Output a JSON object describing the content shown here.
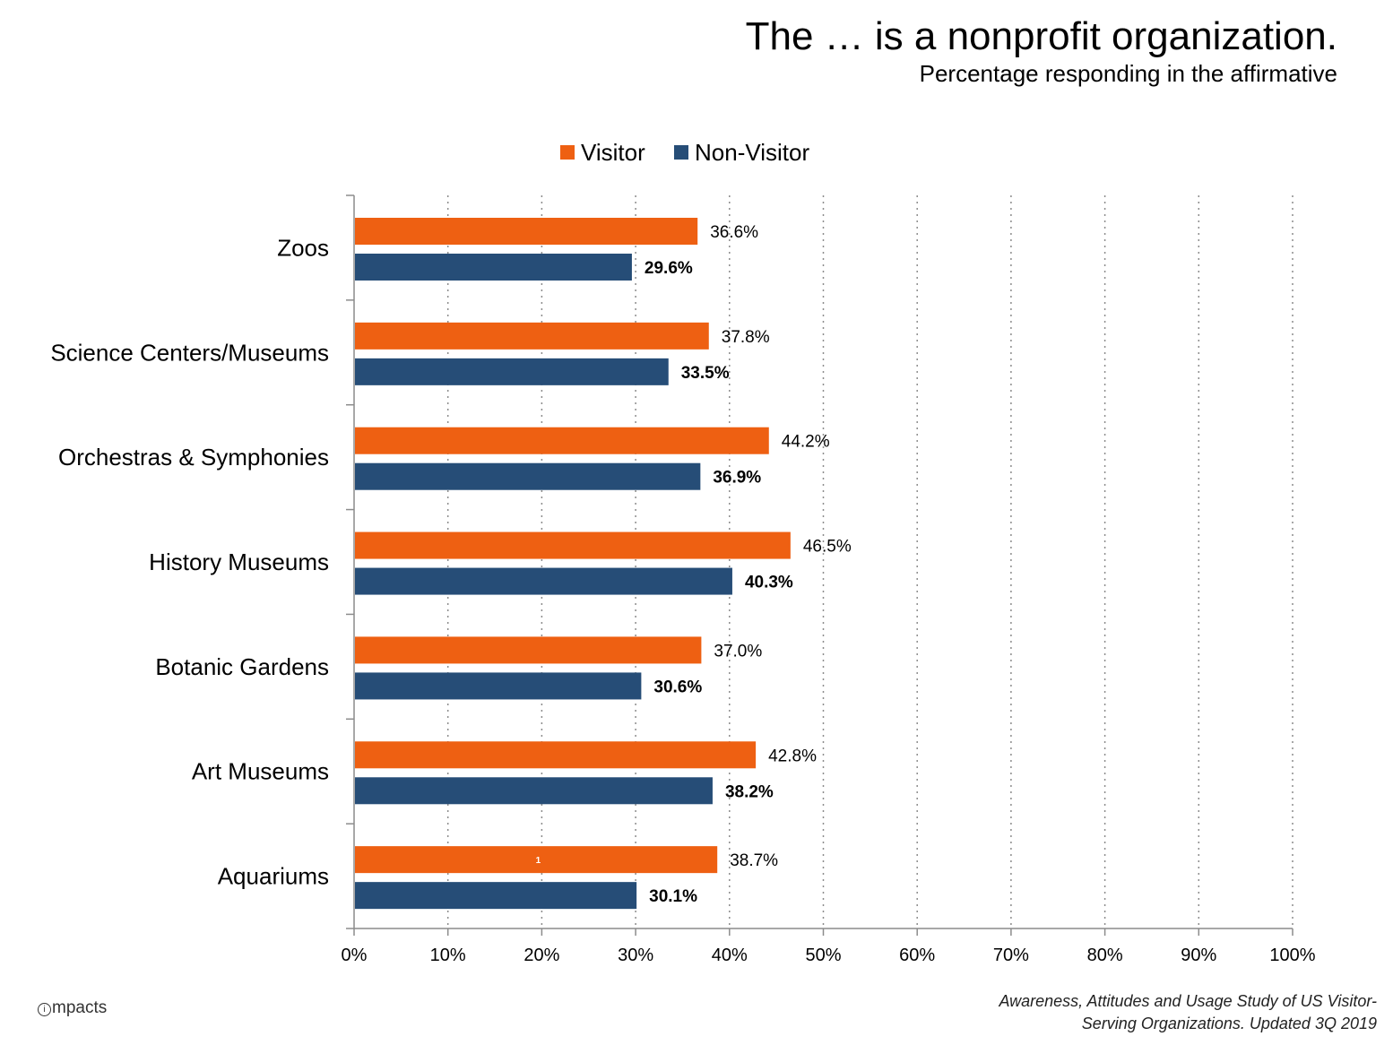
{
  "header": {
    "title": "The … is a nonprofit organization.",
    "subtitle": "Percentage responding in the affirmative"
  },
  "chart_data": {
    "type": "bar",
    "orientation": "horizontal",
    "title": "The … is a nonprofit organization.",
    "subtitle": "Percentage responding in the affirmative",
    "categories": [
      "Zoos",
      "Science Centers/Museums",
      "Orchestras & Symphonies",
      "History Museums",
      "Botanic Gardens",
      "Art Museums",
      "Aquariums"
    ],
    "series": [
      {
        "name": "Visitor",
        "color": "#EE6012",
        "values": [
          36.6,
          37.8,
          44.2,
          46.5,
          37.0,
          42.8,
          38.7
        ],
        "labels": [
          "36.6%",
          "37.8%",
          "44.2%",
          "46.5%",
          "37.0%",
          "42.8%",
          "38.7%"
        ]
      },
      {
        "name": "Non-Visitor",
        "color": "#264D77",
        "values": [
          29.6,
          33.5,
          36.9,
          40.3,
          30.6,
          38.2,
          30.1
        ],
        "labels": [
          "29.6%",
          "33.5%",
          "36.9%",
          "40.3%",
          "30.6%",
          "38.2%",
          "30.1%"
        ]
      }
    ],
    "xlim": [
      0,
      100
    ],
    "xticks": [
      "0%",
      "10%",
      "20%",
      "30%",
      "40%",
      "50%",
      "60%",
      "70%",
      "80%",
      "90%",
      "100%"
    ],
    "grid": "vertical dotted",
    "legend": "top-center",
    "annotation": "1"
  },
  "footer": {
    "brand": "mpacts",
    "brand_mark": "i",
    "source_line1": "Awareness, Attitudes and Usage Study of US Visitor-",
    "source_line2": "Serving Organizations. Updated 3Q 2019"
  }
}
